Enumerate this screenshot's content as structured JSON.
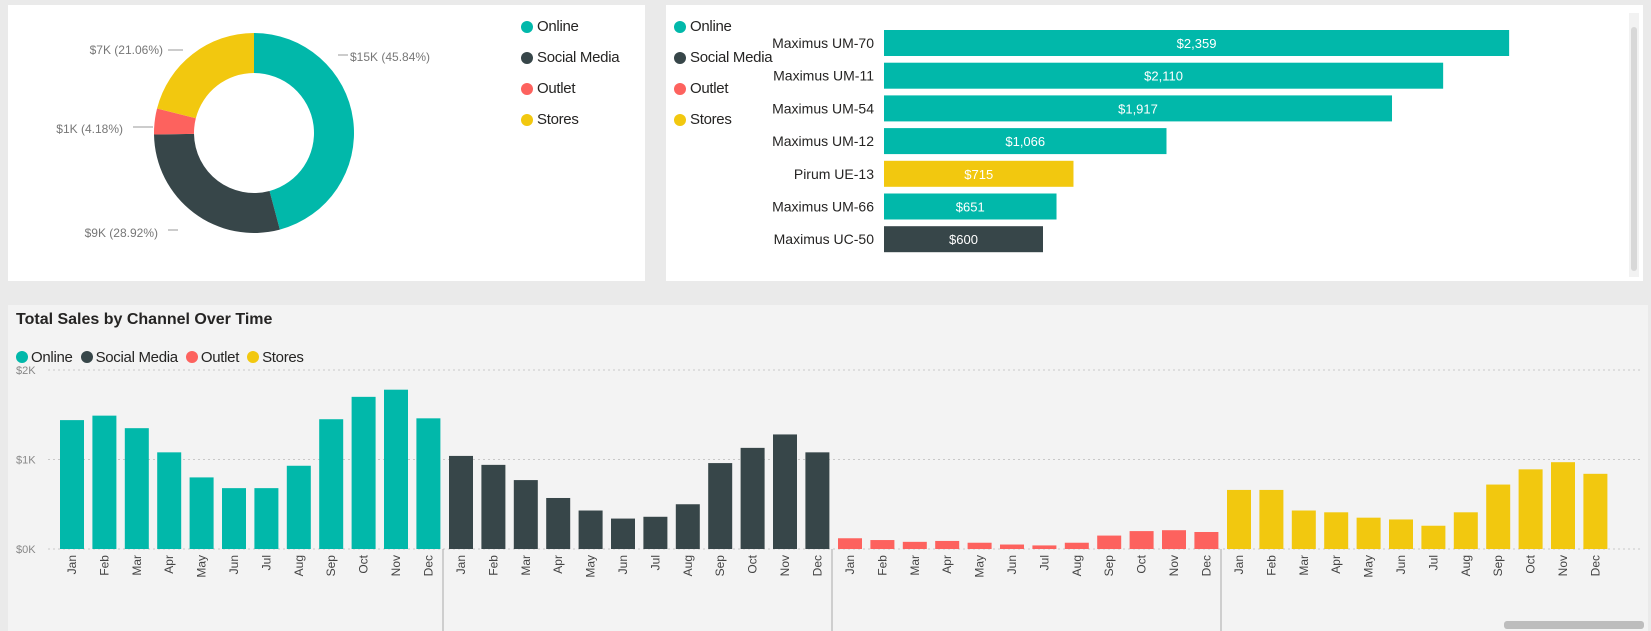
{
  "colors": {
    "online": "#01b8aa",
    "social_media": "#374649",
    "outlet": "#fd625e",
    "stores": "#f2c80f"
  },
  "legend_items": [
    {
      "label": "Online",
      "color": "#01b8aa"
    },
    {
      "label": "Social Media",
      "color": "#374649"
    },
    {
      "label": "Outlet",
      "color": "#fd625e"
    },
    {
      "label": "Stores",
      "color": "#f2c80f"
    }
  ],
  "line_panel": {
    "title": "Total Sales by Channel Over Time"
  },
  "chart_data": [
    {
      "type": "pie",
      "donut": true,
      "legend_position": "right",
      "labels": [
        "Online",
        "Social Media",
        "Outlet",
        "Stores"
      ],
      "values": [
        45.84,
        28.92,
        4.18,
        21.06
      ],
      "data_labels": [
        "$15K (45.84%)",
        "$9K (28.92%)",
        "$1K (4.18%)",
        "$7K (21.06%)"
      ],
      "colors": [
        "#01b8aa",
        "#374649",
        "#fd625e",
        "#f2c80f"
      ]
    },
    {
      "type": "bar",
      "orientation": "horizontal",
      "legend_position": "left",
      "categories": [
        "Maximus UM-70",
        "Maximus UM-11",
        "Maximus UM-54",
        "Maximus UM-12",
        "Pirum UE-13",
        "Maximus UM-66",
        "Maximus UC-50"
      ],
      "values": [
        2359,
        2110,
        1917,
        1066,
        715,
        651,
        600
      ],
      "data_labels": [
        "$2,359",
        "$2,110",
        "$1,917",
        "$1,066",
        "$715",
        "$651",
        "$600"
      ],
      "bar_colors": [
        "#01b8aa",
        "#01b8aa",
        "#01b8aa",
        "#01b8aa",
        "#f2c80f",
        "#01b8aa",
        "#374649"
      ],
      "xlim": [
        0,
        2400
      ]
    },
    {
      "type": "bar",
      "legend_position": "top-left",
      "grid": true,
      "ylim": [
        0,
        2000
      ],
      "yticks": [
        0,
        1000,
        2000
      ],
      "ytick_labels": [
        "$0K",
        "$1K",
        "$2K"
      ],
      "categories": [
        "Jan",
        "Feb",
        "Mar",
        "Apr",
        "May",
        "Jun",
        "Jul",
        "Aug",
        "Sep",
        "Oct",
        "Nov",
        "Dec"
      ],
      "series": [
        {
          "name": "Online",
          "color": "#01b8aa",
          "values": [
            1440,
            1490,
            1350,
            1080,
            800,
            680,
            680,
            930,
            1450,
            1700,
            1780,
            1460
          ]
        },
        {
          "name": "Social Media",
          "color": "#374649",
          "values": [
            1040,
            940,
            770,
            570,
            430,
            340,
            360,
            500,
            960,
            1130,
            1280,
            1080
          ]
        },
        {
          "name": "Outlet",
          "color": "#fd625e",
          "values": [
            120,
            100,
            80,
            90,
            70,
            50,
            40,
            70,
            150,
            200,
            210,
            190
          ]
        },
        {
          "name": "Stores",
          "color": "#f2c80f",
          "values": [
            660,
            660,
            430,
            410,
            350,
            330,
            260,
            410,
            720,
            890,
            970,
            840
          ]
        }
      ]
    }
  ]
}
